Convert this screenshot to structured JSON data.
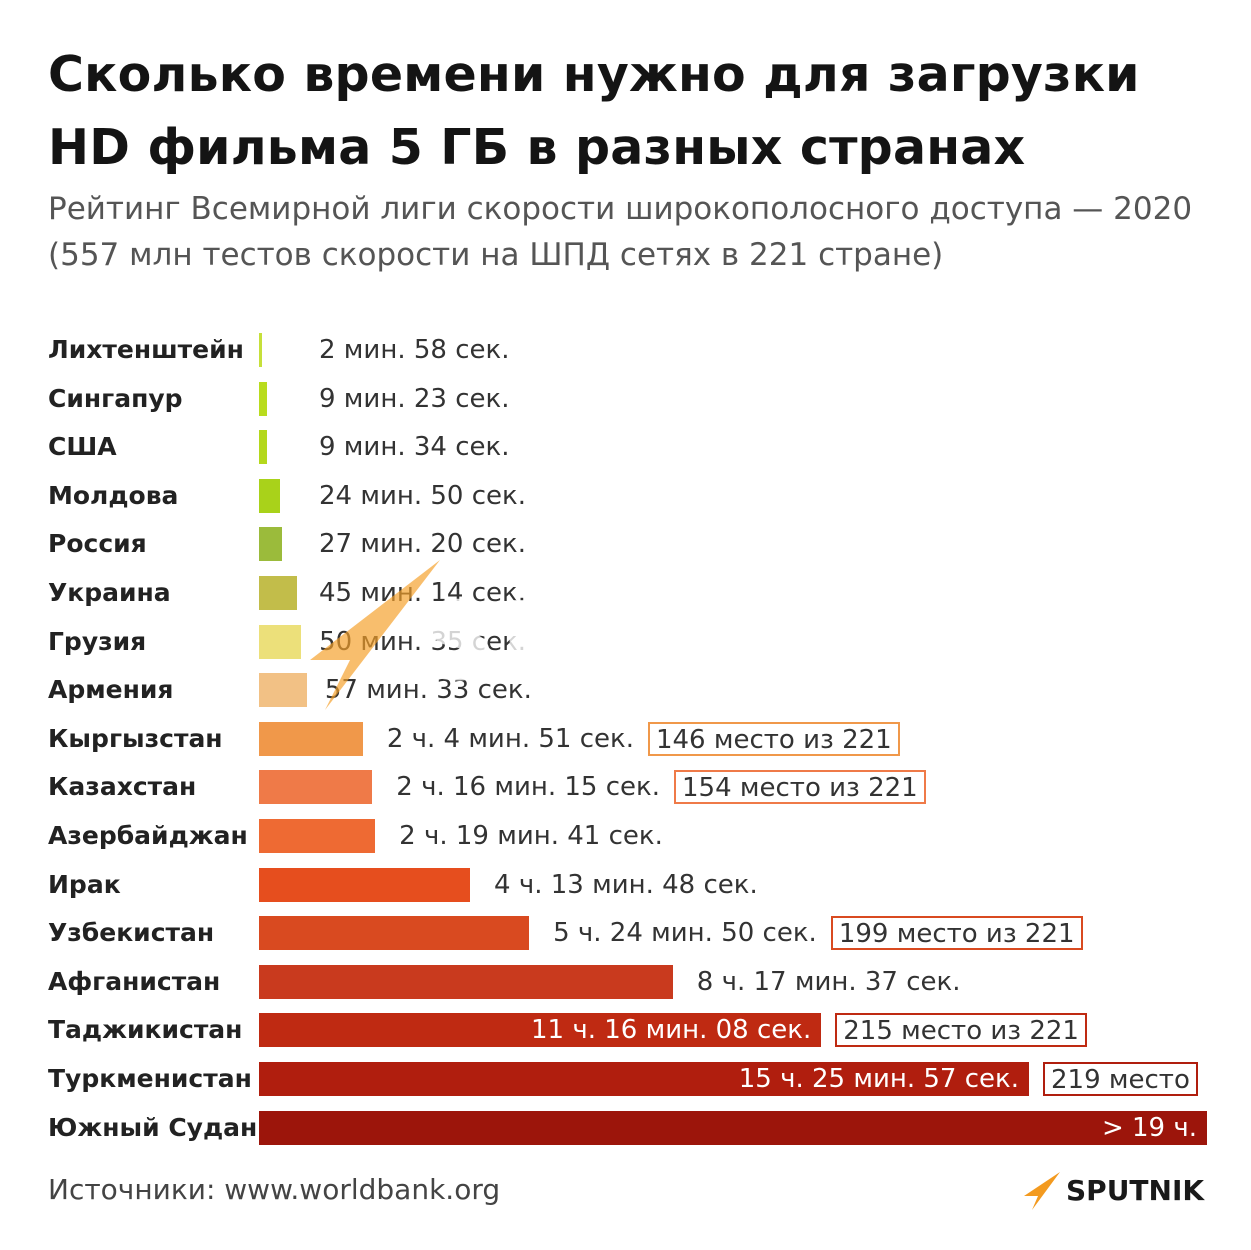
{
  "title": "Сколько времени нужно для загрузки HD фильма 5 ГБ в разных странах",
  "subtitle": "Рейтинг Всемирной лиги скорости широкополосного доступа — 2020 (557 млн тестов скорости на ШПД сетях в 221 стране)",
  "source": "Источники: www.worldbank.org",
  "brand": "SPUTNIK",
  "chart_data": {
    "type": "bar",
    "orientation": "horizontal",
    "unit": "seconds",
    "title": "Сколько времени нужно для загрузки HD фильма 5 ГБ в разных странах",
    "categories": [
      "Лихтенштейн",
      "Сингапур",
      "США",
      "Молдова",
      "Россия",
      "Украина",
      "Грузия",
      "Армения",
      "Кыргызстан",
      "Казахстан",
      "Азербайджан",
      "Ирак",
      "Узбекистан",
      "Афганистан",
      "Таджикистан",
      "Туркменистан",
      "Южный Судан"
    ],
    "values": [
      178,
      563,
      574,
      1490,
      1640,
      2714,
      3035,
      3453,
      7491,
      8175,
      8381,
      15228,
      19490,
      29857,
      40568,
      55557,
      68400
    ],
    "labels": [
      "2 мин. 58 сек.",
      "9 мин. 23 сек.",
      "9 мин. 34 сек.",
      "24 мин. 50 сек.",
      "27 мин. 20 сек.",
      "45 мин. 14 сек.",
      "50 мин. 35 сек.",
      "57 мин. 33 сек.",
      "2 ч. 4 мин. 51 сек.",
      "2 ч. 16 мин. 15 сек.",
      "2 ч. 19 мин. 41 сек.",
      "4 ч. 13 мин. 48 сек.",
      "5 ч. 24 мин. 50 сек.",
      "8 ч. 17 мин. 37 сек.",
      "11 ч. 16 мин. 08 сек.",
      "15 ч. 25 мин. 57 сек.",
      "> 19 ч."
    ],
    "ranks": [
      "",
      "",
      "",
      "",
      "",
      "",
      "",
      "",
      "146 место из 221",
      "154 место из 221",
      "",
      "",
      "199 место из 221",
      "",
      "215 место из 221",
      "219 место",
      ""
    ],
    "colors": [
      "#c6e03a",
      "#b9dc1e",
      "#b4d81c",
      "#a9d21a",
      "#9bbb3b",
      "#c2bd4a",
      "#ece07a",
      "#f2c185",
      "#f0984a",
      "#ef7a48",
      "#ee6a33",
      "#e64e1e",
      "#d94a20",
      "#c93a1e",
      "#bf2a12",
      "#b01e0e",
      "#9c150b"
    ],
    "rank_border_colors": [
      "",
      "",
      "",
      "",
      "",
      "",
      "",
      "",
      "#f0984a",
      "#ef7a48",
      "",
      "",
      "#d94a20",
      "",
      "#bf2a12",
      "#b01e0e",
      ""
    ]
  }
}
